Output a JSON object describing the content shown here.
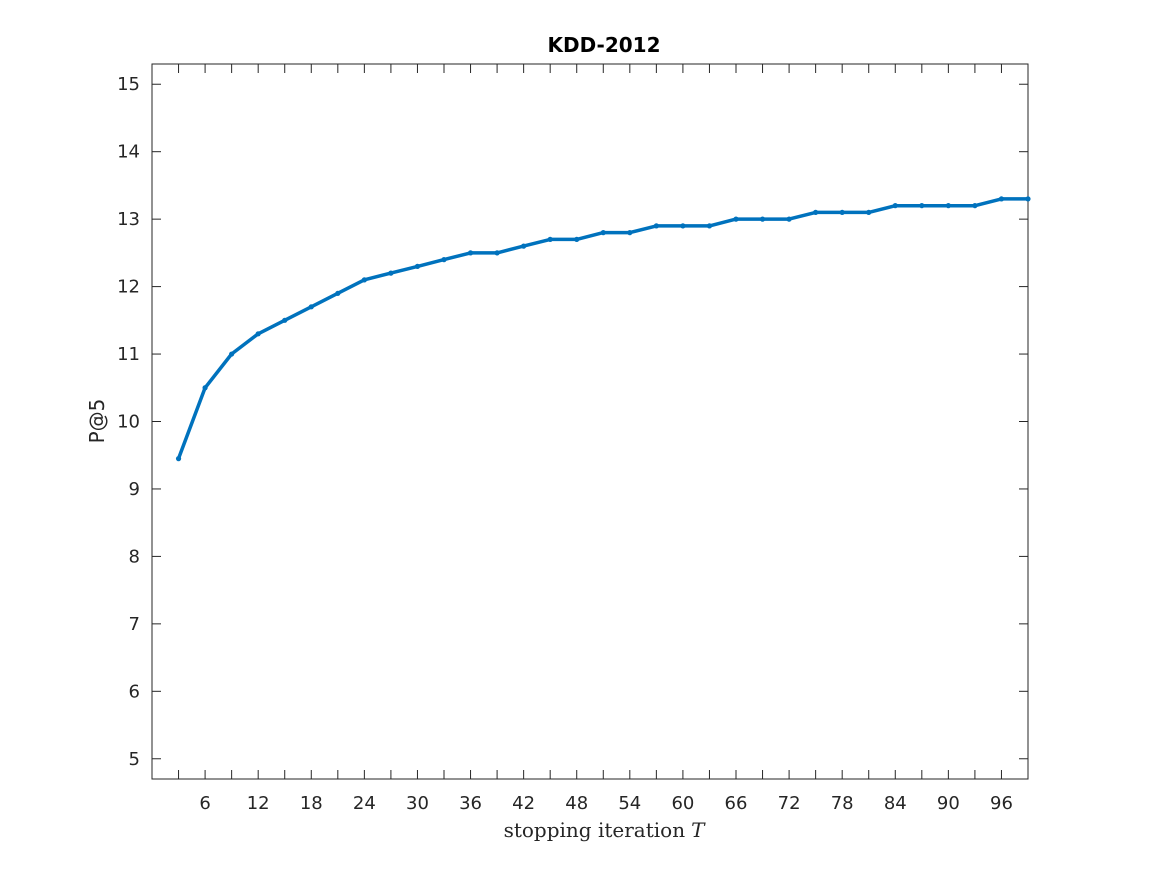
{
  "chart_data": {
    "type": "line",
    "title": "KDD-2012",
    "xlabel": "stopping iteration",
    "xlabel_var": "T",
    "ylabel": "P@5",
    "xlim": [
      0,
      99
    ],
    "ylim": [
      4.7,
      15.3
    ],
    "xticks": [
      6,
      12,
      18,
      24,
      30,
      36,
      42,
      48,
      54,
      60,
      66,
      72,
      78,
      84,
      90,
      96
    ],
    "xticks_minor": [
      3,
      9,
      15,
      21,
      27,
      33,
      39,
      45,
      51,
      57,
      63,
      69,
      75,
      81,
      87,
      93,
      99
    ],
    "yticks": [
      5,
      6,
      7,
      8,
      9,
      10,
      11,
      12,
      13,
      14,
      15
    ],
    "grid": false,
    "series": [
      {
        "color": "#0072BD",
        "x": [
          3,
          6,
          9,
          12,
          15,
          18,
          21,
          24,
          27,
          30,
          33,
          36,
          39,
          42,
          45,
          48,
          51,
          54,
          57,
          60,
          63,
          66,
          69,
          72,
          75,
          78,
          81,
          84,
          87,
          90,
          93,
          96,
          99
        ],
        "y": [
          9.45,
          10.5,
          11.0,
          11.3,
          11.5,
          11.7,
          11.9,
          12.1,
          12.2,
          12.3,
          12.4,
          12.5,
          12.5,
          12.6,
          12.7,
          12.7,
          12.8,
          12.8,
          12.9,
          12.9,
          12.9,
          13.0,
          13.0,
          13.0,
          13.1,
          13.1,
          13.1,
          13.2,
          13.2,
          13.2,
          13.2,
          13.3,
          13.3
        ]
      }
    ]
  }
}
